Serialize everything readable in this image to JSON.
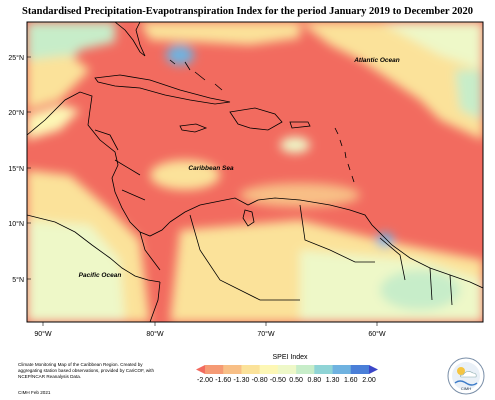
{
  "title": "Standardised Precipitation-Evapotranspiration Index for the period January 2019 to December 2020",
  "ocean_labels": [
    "Atlantic Ocean",
    "Caribbean Sea",
    "Pacific Ocean"
  ],
  "lat_ticks": [
    "25°N",
    "20°N",
    "15°N",
    "10°N",
    "5°N"
  ],
  "lon_ticks": [
    "90°W",
    "80°W",
    "70°W",
    "60°W"
  ],
  "credit": "Climate Monitoring Map of the Caribbean Region. Created by aggregating station based observations, provided by CariCOF, with NCEP/NCAR Reanalysis Data.",
  "credit_date": "CIMH Feb 2021",
  "legend": {
    "title": "SPEI Index",
    "labels": [
      "-2.00",
      "-1.60",
      "-1.30",
      "-0.80",
      "-0.50",
      "0.50",
      "0.80",
      "1.30",
      "1.60",
      "2.00"
    ],
    "colors": [
      "#f26b5f",
      "#f59a74",
      "#f8bf86",
      "#fbe29a",
      "#fdf7b5",
      "#eef8c8",
      "#c7edc9",
      "#8fd4d6",
      "#6fb2e0",
      "#4a7fd8",
      "#3b46c8"
    ]
  },
  "logo": {
    "text": "CIMH"
  }
}
